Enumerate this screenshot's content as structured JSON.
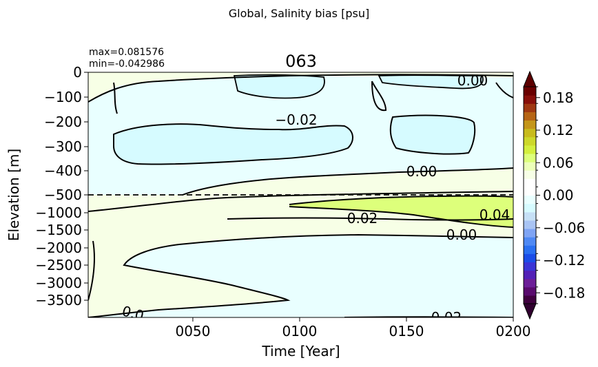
{
  "chart_data": {
    "type": "heatmap",
    "suptitle": "Global, Salinity bias [psu]",
    "title": "063",
    "stats": {
      "max": "max=0.081576",
      "min": "min=-0.042986"
    },
    "xlabel": "Time [Year]",
    "ylabel": "Elevation [m]",
    "x_range": [
      1,
      200
    ],
    "x_ticks": [
      {
        "value": 50,
        "label": "0050"
      },
      {
        "value": 100,
        "label": "0100"
      },
      {
        "value": 150,
        "label": "0150"
      },
      {
        "value": 200,
        "label": "0200"
      }
    ],
    "y_upper_range": [
      -550,
      0
    ],
    "y_lower_range": [
      -4000,
      -500
    ],
    "y_split_depth": -500,
    "y_ticks": [
      "0",
      "−100",
      "−200",
      "−300",
      "−400",
      "−500",
      "−1000",
      "−1500",
      "−2000",
      "−2500",
      "−3000",
      "−3500"
    ],
    "colorbar": {
      "range": [
        -0.2,
        0.2
      ],
      "extend": "both",
      "tick_labels": [
        "0.18",
        "0.12",
        "0.06",
        "0.00",
        "−0.06",
        "−0.12",
        "−0.18"
      ],
      "tick_values": [
        0.18,
        0.12,
        0.06,
        0.0,
        -0.06,
        -0.12,
        -0.18
      ],
      "colors": [
        "#40003f",
        "#5a0a6e",
        "#6d1e98",
        "#5320b6",
        "#3b35d6",
        "#1b4de8",
        "#2a6ff1",
        "#4f89f4",
        "#7fa4f4",
        "#a9c4f4",
        "#c6e0f6",
        "#d6fbff",
        "#e9ffff",
        "#ffffff",
        "#ffffff",
        "#f7ffe6",
        "#ecffb9",
        "#ddff7b",
        "#d4ef3e",
        "#cdd82a",
        "#c8bb1d",
        "#c4961a",
        "#b66515",
        "#9f3812",
        "#880f0a",
        "#6a0000"
      ],
      "under_color": "#30002f",
      "over_color": "#5c0000"
    },
    "contour_labels": [
      {
        "text": "0.00",
        "year": 168,
        "depth": -30
      },
      {
        "text": "−0.02",
        "year": 90,
        "depth": -188
      },
      {
        "text": "0.00",
        "year": 157,
        "depth": -430
      },
      {
        "text": "0.04",
        "year": 191,
        "depth": -850
      },
      {
        "text": "0.02",
        "year": 113,
        "depth": -950
      },
      {
        "text": "0.00",
        "year": 174,
        "depth": -1810
      },
      {
        "text": "0.02",
        "year": 163,
        "depth": -3950
      },
      {
        "text": "0.0",
        "year": 23,
        "depth": -3930
      }
    ]
  }
}
